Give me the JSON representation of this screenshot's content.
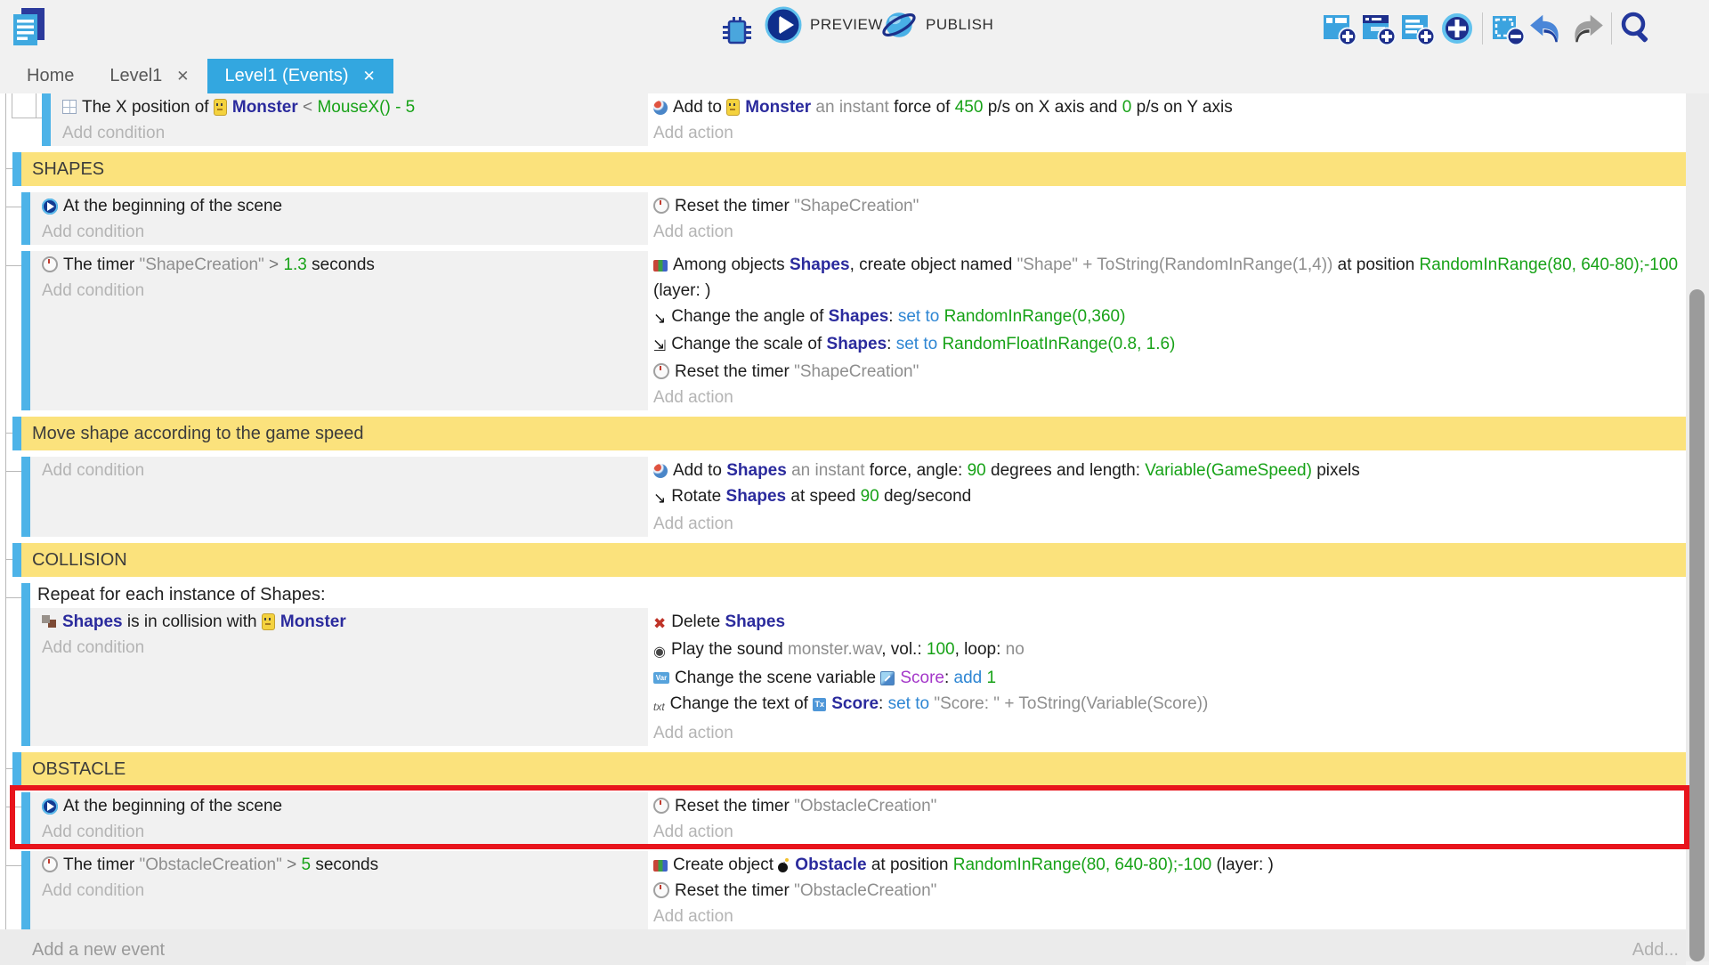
{
  "colors": {
    "accent_blue": "#33a7e0",
    "event_bar": "#4db3e8",
    "group_yellow": "#fbe27c",
    "highlight_red": "#e8141c",
    "expr_green": "#17a217",
    "object_navy": "#2b2b9d",
    "keyword_blue": "#2e86d3",
    "variable_purple": "#a437c9"
  },
  "toolbar": {
    "left_icons": [
      "project-manager-icon"
    ],
    "center": {
      "icons": [
        "debug-icon",
        "preview-play-icon",
        "publish-globe-icon"
      ],
      "preview_label": "PREVIEW",
      "publish_label": "PUBLISH"
    },
    "right_icons": [
      "add-event-icon",
      "add-subevent-icon",
      "add-comment-icon",
      "add-circle-icon",
      "remove-selection-icon",
      "undo-icon",
      "redo-icon",
      "search-icon"
    ]
  },
  "tabs": [
    {
      "label": "Home",
      "closable": false,
      "active": false
    },
    {
      "label": "Level1",
      "closable": true,
      "active": false
    },
    {
      "label": "Level1 (Events)",
      "closable": true,
      "active": true
    }
  ],
  "tab_close_glyph": "✕",
  "ui": {
    "add_condition": "Add condition",
    "add_action": "Add action",
    "add_new_event": "Add a new event",
    "add_more": "Add..."
  },
  "events": [
    {
      "kind": "event",
      "indent": 1,
      "first": true,
      "conditions": [
        {
          "icon": "position",
          "parts": [
            {
              "t": "The X position of ",
              "s": "plain"
            },
            {
              "ic": "monster"
            },
            {
              "t": "Monster",
              "s": "obj"
            },
            {
              "t": " < ",
              "s": "op"
            },
            {
              "t": "MouseX() - 5",
              "s": "expr"
            }
          ]
        }
      ],
      "actions": [
        {
          "icon": "force",
          "parts": [
            {
              "t": "Add to ",
              "s": "plain"
            },
            {
              "ic": "monster"
            },
            {
              "t": "Monster",
              "s": "obj"
            },
            {
              "t": " an instant ",
              "s": "str"
            },
            {
              "t": "force of ",
              "s": "plain"
            },
            {
              "t": "450",
              "s": "expr"
            },
            {
              "t": " p/s on X axis and ",
              "s": "plain"
            },
            {
              "t": "0",
              "s": "expr"
            },
            {
              "t": " p/s on Y axis",
              "s": "plain"
            }
          ]
        }
      ]
    },
    {
      "kind": "group",
      "label": "SHAPES"
    },
    {
      "kind": "event",
      "conditions": [
        {
          "icon": "play",
          "parts": [
            {
              "t": "At the beginning of the scene",
              "s": "plain"
            }
          ]
        }
      ],
      "actions": [
        {
          "icon": "timer",
          "parts": [
            {
              "t": "Reset the timer ",
              "s": "plain"
            },
            {
              "t": "\"ShapeCreation\"",
              "s": "str"
            }
          ]
        }
      ]
    },
    {
      "kind": "event",
      "conditions": [
        {
          "icon": "timer",
          "parts": [
            {
              "t": "The timer ",
              "s": "plain"
            },
            {
              "t": "\"ShapeCreation\"",
              "s": "str"
            },
            {
              "t": " > ",
              "s": "op"
            },
            {
              "t": "1.3",
              "s": "expr"
            },
            {
              "t": " seconds",
              "s": "plain"
            }
          ]
        }
      ],
      "actions": [
        {
          "icon": "create",
          "parts": [
            {
              "t": "Among objects ",
              "s": "plain"
            },
            {
              "t": "Shapes",
              "s": "obj"
            },
            {
              "t": ", create object named ",
              "s": "plain"
            },
            {
              "t": "\"Shape\" + ToString(RandomInRange(1,4))",
              "s": "str"
            },
            {
              "t": " at position ",
              "s": "plain"
            },
            {
              "t": "RandomInRange(80, 640-80);-100",
              "s": "expr"
            },
            {
              "t": " (layer: )",
              "s": "plain"
            }
          ]
        },
        {
          "icon": "angle",
          "parts": [
            {
              "t": "Change the angle of ",
              "s": "plain"
            },
            {
              "t": "Shapes",
              "s": "obj"
            },
            {
              "t": ": ",
              "s": "plain"
            },
            {
              "t": "set to ",
              "s": "kw"
            },
            {
              "t": "RandomInRange(0,360)",
              "s": "expr"
            }
          ]
        },
        {
          "icon": "scale",
          "parts": [
            {
              "t": "Change the scale of ",
              "s": "plain"
            },
            {
              "t": "Shapes",
              "s": "obj"
            },
            {
              "t": ": ",
              "s": "plain"
            },
            {
              "t": "set to ",
              "s": "kw"
            },
            {
              "t": "RandomFloatInRange(0.8, 1.6)",
              "s": "expr"
            }
          ]
        },
        {
          "icon": "timer",
          "parts": [
            {
              "t": "Reset the timer ",
              "s": "plain"
            },
            {
              "t": "\"ShapeCreation\"",
              "s": "str"
            }
          ]
        }
      ]
    },
    {
      "kind": "group",
      "label": "Move shape according to the game speed"
    },
    {
      "kind": "event",
      "conditions": [],
      "actions": [
        {
          "icon": "force",
          "parts": [
            {
              "t": "Add to ",
              "s": "plain"
            },
            {
              "t": "Shapes",
              "s": "obj"
            },
            {
              "t": " an instant ",
              "s": "str"
            },
            {
              "t": "force, angle: ",
              "s": "plain"
            },
            {
              "t": "90",
              "s": "expr"
            },
            {
              "t": " degrees and length: ",
              "s": "plain"
            },
            {
              "t": "Variable(GameSpeed)",
              "s": "expr"
            },
            {
              "t": " pixels",
              "s": "plain"
            }
          ]
        },
        {
          "icon": "angle",
          "parts": [
            {
              "t": "Rotate ",
              "s": "plain"
            },
            {
              "t": "Shapes",
              "s": "obj"
            },
            {
              "t": " at speed ",
              "s": "plain"
            },
            {
              "t": "90",
              "s": "expr"
            },
            {
              "t": " deg/second",
              "s": "plain"
            }
          ]
        }
      ]
    },
    {
      "kind": "group",
      "label": "COLLISION"
    },
    {
      "kind": "event",
      "foreach": "Repeat for each instance of Shapes:",
      "conditions": [
        {
          "icon": "collision",
          "parts": [
            {
              "t": "Shapes",
              "s": "obj"
            },
            {
              "t": " is in collision with ",
              "s": "plain"
            },
            {
              "ic": "monster"
            },
            {
              "t": "Monster",
              "s": "obj"
            }
          ]
        }
      ],
      "actions": [
        {
          "icon": "delete",
          "parts": [
            {
              "t": "Delete ",
              "s": "plain"
            },
            {
              "t": "Shapes",
              "s": "obj"
            }
          ]
        },
        {
          "icon": "sound",
          "parts": [
            {
              "t": "Play the sound ",
              "s": "plain"
            },
            {
              "t": "monster.wav",
              "s": "str"
            },
            {
              "t": ", vol.: ",
              "s": "plain"
            },
            {
              "t": "100",
              "s": "expr"
            },
            {
              "t": ", loop: ",
              "s": "plain"
            },
            {
              "t": "no",
              "s": "str"
            }
          ]
        },
        {
          "icon": "variable",
          "parts": [
            {
              "t": "Change the scene variable ",
              "s": "plain"
            },
            {
              "ic": "varbadge"
            },
            {
              "t": "Score",
              "s": "purple"
            },
            {
              "t": ": ",
              "s": "plain"
            },
            {
              "t": "add ",
              "s": "kw"
            },
            {
              "t": "1",
              "s": "expr"
            }
          ]
        },
        {
          "icon": "text",
          "parts": [
            {
              "t": "Change the text of ",
              "s": "plain"
            },
            {
              "ic": "textbadge"
            },
            {
              "t": "Score",
              "s": "obj"
            },
            {
              "t": ": ",
              "s": "plain"
            },
            {
              "t": "set to ",
              "s": "kw"
            },
            {
              "t": "\"Score: \" + ToString(Variable(Score))",
              "s": "str"
            }
          ]
        }
      ]
    },
    {
      "kind": "group",
      "label": "OBSTACLE"
    },
    {
      "kind": "event",
      "highlight": true,
      "conditions": [
        {
          "icon": "play",
          "parts": [
            {
              "t": "At the beginning of the scene",
              "s": "plain"
            }
          ]
        }
      ],
      "actions": [
        {
          "icon": "timer",
          "parts": [
            {
              "t": "Reset the timer ",
              "s": "plain"
            },
            {
              "t": "\"ObstacleCreation\"",
              "s": "str"
            }
          ]
        }
      ]
    },
    {
      "kind": "event",
      "conditions": [
        {
          "icon": "timer",
          "parts": [
            {
              "t": "The timer ",
              "s": "plain"
            },
            {
              "t": "\"ObstacleCreation\"",
              "s": "str"
            },
            {
              "t": " > ",
              "s": "op"
            },
            {
              "t": "5",
              "s": "expr"
            },
            {
              "t": " seconds",
              "s": "plain"
            }
          ]
        }
      ],
      "actions": [
        {
          "icon": "create",
          "parts": [
            {
              "t": "Create object ",
              "s": "plain"
            },
            {
              "ic": "bomb"
            },
            {
              "t": "Obstacle",
              "s": "obj"
            },
            {
              "t": " at position ",
              "s": "plain"
            },
            {
              "t": "RandomInRange(80, 640-80);-100",
              "s": "expr"
            },
            {
              "t": " (layer: )",
              "s": "plain"
            }
          ]
        },
        {
          "icon": "timer",
          "parts": [
            {
              "t": "Reset the timer ",
              "s": "plain"
            },
            {
              "t": "\"ObstacleCreation\"",
              "s": "str"
            }
          ]
        }
      ]
    }
  ]
}
